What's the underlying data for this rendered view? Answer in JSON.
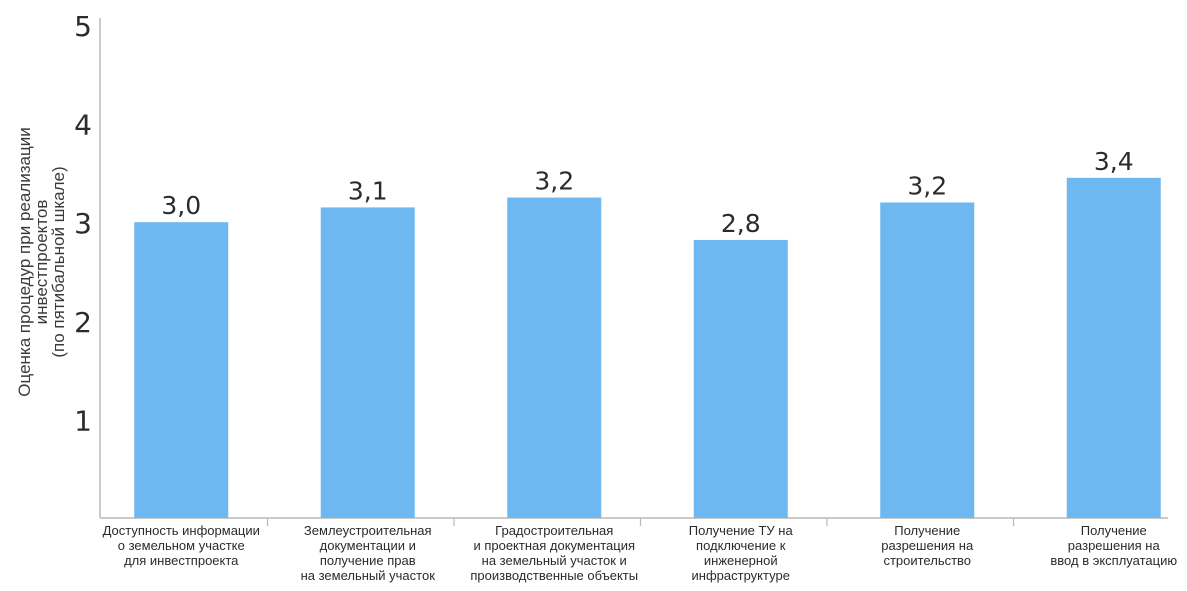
{
  "chart_data": {
    "type": "bar",
    "ylabel_lines": [
      "Оценка процедур при реализации",
      "инвестпроектов",
      "(по пятибальной шкале)"
    ],
    "ylim": [
      0,
      5
    ],
    "yticks": [
      1,
      2,
      3,
      4,
      5
    ],
    "grid": false,
    "bar_color": "#6db8f0",
    "axis_color": "#b9b9b9",
    "categories": [
      [
        "Доступность информации",
        "о земельном участке",
        "для инвестпроекта"
      ],
      [
        "Землеустроительная",
        "документации и",
        "получение прав",
        "на земельный участок"
      ],
      [
        "Градостроительная",
        "и проектная документация",
        "на земельный участок и",
        "производственные объекты"
      ],
      [
        "Получение ТУ на",
        "подключение к",
        "инженерной",
        "инфраструктуре"
      ],
      [
        "Получение",
        "разрешения на",
        "строительство"
      ],
      [
        "Получение",
        "разрешения на",
        "ввод в эксплуатацию"
      ]
    ],
    "values": [
      3.0,
      3.15,
      3.25,
      2.82,
      3.2,
      3.45
    ],
    "value_labels": [
      "3,0",
      "3,1",
      "3,2",
      "2,8",
      "3,2",
      "3,4"
    ]
  }
}
